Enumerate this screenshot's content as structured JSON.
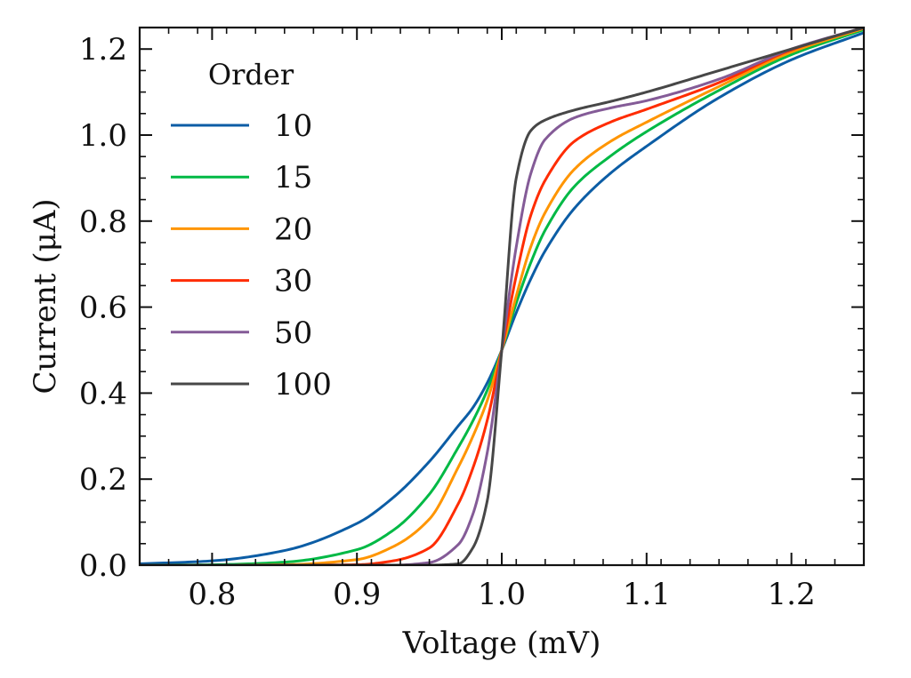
{
  "chart_data": {
    "type": "line",
    "xlabel": "Voltage (mV)",
    "ylabel": "Current (μA)",
    "xlim": [
      0.75,
      1.25
    ],
    "ylim": [
      0.0,
      1.25
    ],
    "x_ticks": [
      0.8,
      0.9,
      1.0,
      1.1,
      1.2
    ],
    "x_tick_labels": [
      "0.8",
      "0.9",
      "1.0",
      "1.1",
      "1.2"
    ],
    "y_ticks": [
      0.0,
      0.2,
      0.4,
      0.6,
      0.8,
      1.0,
      1.2
    ],
    "y_tick_labels": [
      "0.0",
      "0.2",
      "0.4",
      "0.6",
      "0.8",
      "1.0",
      "1.2"
    ],
    "grid": false,
    "legend": {
      "title": "Order",
      "placement": "top-left"
    },
    "x": [
      0.75,
      0.8,
      0.85,
      0.9,
      0.925,
      0.95,
      0.97,
      0.98,
      0.99,
      1.0,
      1.01,
      1.02,
      1.03,
      1.05,
      1.075,
      1.1,
      1.15,
      1.2,
      1.25
    ],
    "series": [
      {
        "name": "10",
        "color": "#0C5DA5",
        "values": [
          0.003,
          0.01,
          0.034,
          0.097,
          0.157,
          0.241,
          0.324,
          0.366,
          0.424,
          0.5,
          0.587,
          0.665,
          0.731,
          0.829,
          0.911,
          0.974,
          1.087,
          1.175,
          1.238
        ]
      },
      {
        "name": "15",
        "color": "#00B945",
        "values": [
          0.0,
          0.001,
          0.007,
          0.036,
          0.081,
          0.165,
          0.274,
          0.335,
          0.407,
          0.5,
          0.609,
          0.703,
          0.779,
          0.88,
          0.951,
          1.008,
          1.104,
          1.187,
          1.245
        ]
      },
      {
        "name": "20",
        "color": "#FF9500",
        "values": [
          0.0,
          0.0,
          0.001,
          0.013,
          0.043,
          0.107,
          0.228,
          0.299,
          0.383,
          0.5,
          0.626,
          0.74,
          0.82,
          0.92,
          0.985,
          1.03,
          1.113,
          1.193,
          1.248
        ]
      },
      {
        "name": "30",
        "color": "#FF2C00",
        "values": [
          0.0,
          0.0,
          0.0,
          0.001,
          0.01,
          0.04,
          0.143,
          0.225,
          0.337,
          0.5,
          0.673,
          0.813,
          0.895,
          0.985,
          1.03,
          1.06,
          1.122,
          1.198,
          1.25
        ]
      },
      {
        "name": "50",
        "color": "#845B97",
        "values": [
          0.0,
          0.0,
          0.0,
          0.0,
          0.0,
          0.006,
          0.048,
          0.118,
          0.262,
          0.5,
          0.74,
          0.91,
          0.99,
          1.04,
          1.063,
          1.08,
          1.13,
          1.2,
          1.25
        ]
      },
      {
        "name": "100",
        "color": "#474747",
        "values": [
          0.0,
          0.0,
          0.0,
          0.0,
          0.0,
          0.0,
          0.003,
          0.04,
          0.15,
          0.5,
          0.9,
          1.01,
          1.035,
          1.058,
          1.078,
          1.1,
          1.15,
          1.2,
          1.25
        ]
      }
    ]
  }
}
